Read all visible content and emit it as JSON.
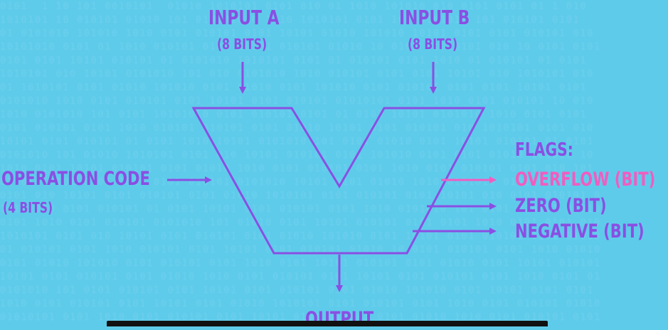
{
  "input_a": {
    "title": "INPUT A",
    "sub": "(8 BITS)"
  },
  "input_b": {
    "title": "INPUT B",
    "sub": "(8 BITS)"
  },
  "opcode": {
    "title": "OPERATION CODE",
    "sub": "(4 BITS)"
  },
  "flags": {
    "heading": "FLAGS:",
    "items": [
      "OVERFLOW (BIT)",
      "ZERO (BIT)",
      "NEGATIVE (BIT)"
    ]
  },
  "output": {
    "title": "OUTPUT"
  },
  "colors": {
    "background": "#5fcbeb",
    "accent": "#8a4fe3",
    "highlight": "#f05dc0"
  }
}
